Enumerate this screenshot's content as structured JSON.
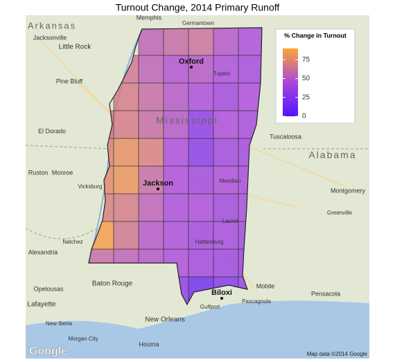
{
  "title": "Turnout Change, 2014 Primary Runoff",
  "legend": {
    "title": "% Change in Turnout",
    "ticks": [
      0,
      25,
      50,
      75
    ],
    "limits": [
      0,
      90
    ],
    "colors": [
      "#5014ff",
      "#aa46dc",
      "#ffa532"
    ]
  },
  "counties": {
    "values": [
      55,
      60,
      62,
      50,
      45,
      65,
      55,
      48,
      50,
      45,
      42,
      68,
      60,
      50,
      45,
      40,
      45,
      70,
      68,
      60,
      50,
      30,
      45,
      42,
      72,
      78,
      70,
      45,
      28,
      40,
      40,
      75,
      80,
      60,
      45,
      40,
      45,
      42,
      70,
      68,
      55,
      45,
      45,
      40,
      42,
      85,
      65,
      50,
      45,
      40,
      42,
      40,
      60,
      55,
      50,
      45,
      40,
      38,
      35,
      30,
      15,
      25,
      35
    ]
  },
  "cities": [
    "Oxford",
    "Jackson",
    "Biloxi"
  ],
  "places": [
    "Arkansas",
    "Jacksonville",
    "Little Rock",
    "Pine Bluff",
    "El Dorado",
    "Ruston",
    "Monroe",
    "Vicksburg",
    "Alexandria",
    "Natchez",
    "Opelousas",
    "Lafayette",
    "Baton Rouge",
    "New Iberia",
    "New Orleans",
    "Houma",
    "Morgan City",
    "Memphis",
    "Germantown",
    "Tuscaloosa",
    "Alabama",
    "Mississippi",
    "Montgomery",
    "Meridian",
    "Tupelo",
    "Laurel",
    "Hattiesburg",
    "Gulfport",
    "Pascagoula",
    "Mobile",
    "Pensacola",
    "Greenville"
  ],
  "logo": "Google",
  "attribution": "Map data ©2014 Google"
}
